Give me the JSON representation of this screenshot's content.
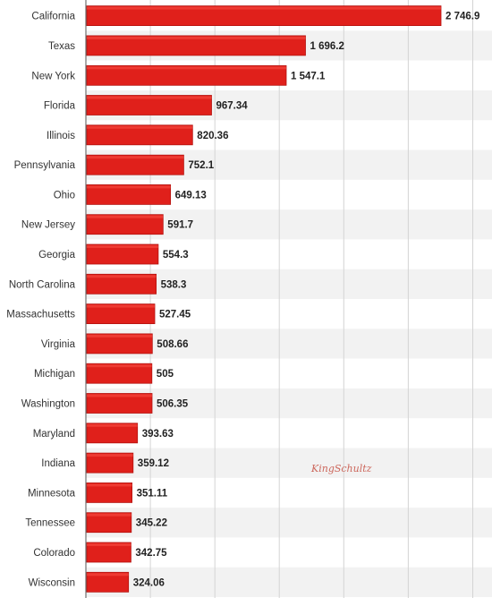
{
  "chart_data": {
    "type": "bar",
    "orientation": "horizontal",
    "categories": [
      "California",
      "Texas",
      "New York",
      "Florida",
      "Illinois",
      "Pennsylvania",
      "Ohio",
      "New Jersey",
      "Georgia",
      "North Carolina",
      "Massachusetts",
      "Virginia",
      "Michigan",
      "Washington",
      "Maryland",
      "Indiana",
      "Minnesota",
      "Tennessee",
      "Colorado",
      "Wisconsin"
    ],
    "values": [
      2746.9,
      1696.2,
      1547.1,
      967.34,
      820.36,
      752.1,
      649.13,
      591.7,
      554.3,
      538.3,
      527.45,
      508.66,
      505,
      506.35,
      393.63,
      359.12,
      351.11,
      345.22,
      342.75,
      324.06
    ],
    "value_labels": [
      "2 746.9",
      "1 696.2",
      "1 547.1",
      "967.34",
      "820.36",
      "752.1",
      "649.13",
      "591.7",
      "554.3",
      "538.3",
      "527.45",
      "508.66",
      "505",
      "506.35",
      "393.63",
      "359.12",
      "351.11",
      "345.22",
      "342.75",
      "324.06"
    ],
    "xlim": [
      0,
      3000
    ],
    "grid": true,
    "bar_color": "#e0201b",
    "band_color": "#f2f2f2"
  },
  "watermark": "KingSchultz"
}
